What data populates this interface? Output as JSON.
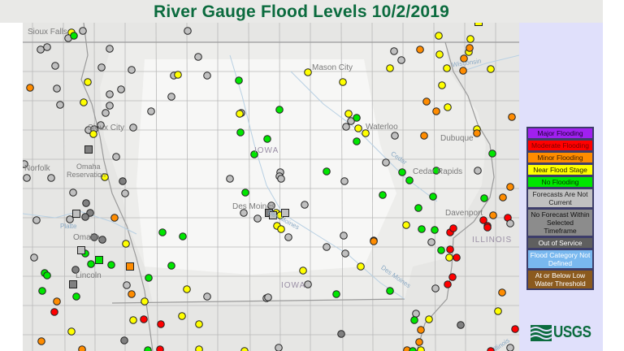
{
  "title": "River Gauge Flood Levels 10/2/2019",
  "map": {
    "places": {
      "sioux_falls": "Sioux Falls",
      "mason_city": "Mason City",
      "sioux_city": "Sioux City",
      "waterloo": "Waterloo",
      "dubuque": "Dubuque",
      "norfolk": "Norfolk",
      "omaha_reservation_1": "Omaha",
      "omaha_reservation_2": "Reservation",
      "cedar_rapids": "Cedar Rapids",
      "des_moines": "Des Moines",
      "davenport": "Davenport",
      "omaha": "Omaha",
      "lincoln": "Lincoln"
    },
    "states": {
      "iowa_1": "IOWA",
      "iowa_2": "IOWA",
      "illinois": "ILLINOIS"
    },
    "rivers": {
      "wisconsin": "Wisconsin",
      "cedar": "Cedar",
      "des_moines": "Des Moines",
      "platte": "Platte",
      "illinois": "Illinois"
    },
    "marker_colors": {
      "major": "#a020f0",
      "moderate": "#ff0000",
      "minor": "#ff8c00",
      "near": "#ffff00",
      "none": "#00e600",
      "not_current": "#c0c0c0",
      "no_forecast": "#808080",
      "out_of_service": "#5a5a5a",
      "undefined": "#79b8ef",
      "low_water": "#8b5a1e"
    }
  },
  "legend": [
    {
      "label": "Major Flooding",
      "bg": "#a020f0",
      "fg": "#1a0033"
    },
    {
      "label": "Moderate Flooding",
      "bg": "#ff0000",
      "fg": "#7a0000"
    },
    {
      "label": "Minor Flooding",
      "bg": "#ff8c00",
      "fg": "#3a1a00"
    },
    {
      "label": "Near Flood Stage",
      "bg": "#ffff00",
      "fg": "#222200"
    },
    {
      "label": "No Flooding",
      "bg": "#00e600",
      "fg": "#003300"
    },
    {
      "label": "Forecasts Are Not Current",
      "bg": "#c0c0c0",
      "fg": "#222222"
    },
    {
      "label": "No Forecast Within Selected Timeframe",
      "bg": "#8c8c8c",
      "fg": "#111111"
    },
    {
      "label": "Out of Service",
      "bg": "#5f5f5f",
      "fg": "#ffffff"
    },
    {
      "label": "Flood Category Not Defined",
      "bg": "#79b8ef",
      "fg": "#ffffff"
    },
    {
      "label": "At or Below Low Water Threshold",
      "bg": "#8b5a1e",
      "fg": "#ffffff"
    }
  ],
  "logo": {
    "text": "USGS",
    "color": "#0b6b3e"
  }
}
